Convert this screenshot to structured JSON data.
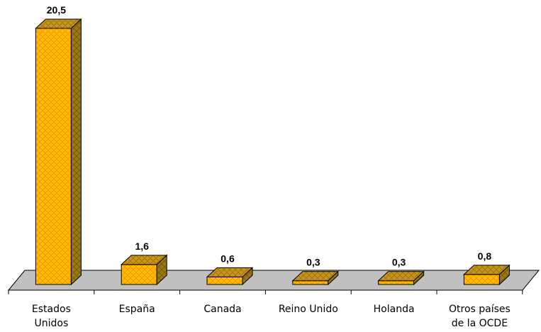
{
  "chart_data": {
    "type": "bar",
    "style": "3d-column",
    "categories": [
      [
        "Estados",
        "Unidos"
      ],
      [
        "España"
      ],
      [
        "Canada"
      ],
      [
        "Reino Unido"
      ],
      [
        "Holanda"
      ],
      [
        "Otros países",
        "de la OCDE"
      ]
    ],
    "values": [
      20.5,
      1.6,
      0.6,
      0.3,
      0.3,
      0.8
    ],
    "value_labels": [
      "20,5",
      "1,6",
      "0,6",
      "0,3",
      "0,3",
      "0,8"
    ],
    "ylim": [
      0,
      20.5
    ],
    "grid": false,
    "legend": "none",
    "colors": {
      "bar_front": "#ffc000",
      "bar_pattern": "#ff9900",
      "bar_top": "#c8961e",
      "bar_side": "#9b7a16",
      "bar_edge": "#000000",
      "floor": "#c0c0c0"
    }
  }
}
